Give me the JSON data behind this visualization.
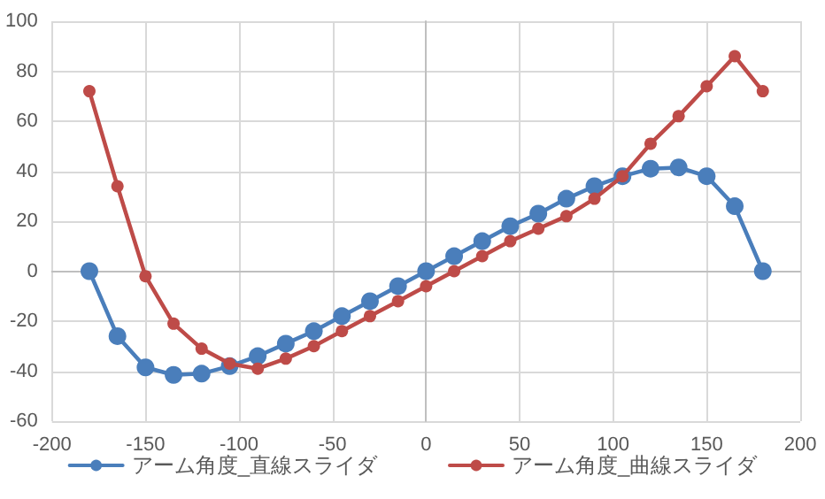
{
  "chart_data": {
    "type": "line",
    "x": [
      -180,
      -165,
      -150,
      -135,
      -120,
      -105,
      -90,
      -75,
      -60,
      -45,
      -30,
      -15,
      0,
      15,
      30,
      45,
      60,
      75,
      90,
      105,
      120,
      135,
      150,
      165,
      180
    ],
    "series": [
      {
        "name": "アーム角度_直線スライダ",
        "color": "#4a7ebb",
        "values": [
          0,
          -26,
          -38.5,
          -41.5,
          -41,
          -38,
          -34,
          -29,
          -24,
          -18,
          -12,
          -6,
          0,
          6,
          12,
          18,
          23,
          29,
          34,
          38,
          41,
          41.5,
          38,
          26,
          0
        ]
      },
      {
        "name": "アーム角度_曲線スライダ",
        "color": "#be4b48",
        "values": [
          72,
          34,
          -2,
          -21,
          -31,
          -37,
          -39,
          -35,
          -30,
          -24,
          -18,
          -12,
          -6,
          0,
          6,
          12,
          17,
          22,
          29,
          38,
          51,
          62,
          74,
          86,
          72
        ]
      }
    ],
    "xlim": [
      -200,
      200
    ],
    "xticks": [
      -200,
      -150,
      -100,
      -50,
      0,
      50,
      100,
      150,
      200
    ],
    "ylim": [
      -60,
      100
    ],
    "yticks": [
      -60,
      -40,
      -20,
      0,
      20,
      40,
      60,
      80,
      100
    ],
    "grid": true,
    "legend": "bottom",
    "marker": "circle",
    "line_style": "solid"
  }
}
